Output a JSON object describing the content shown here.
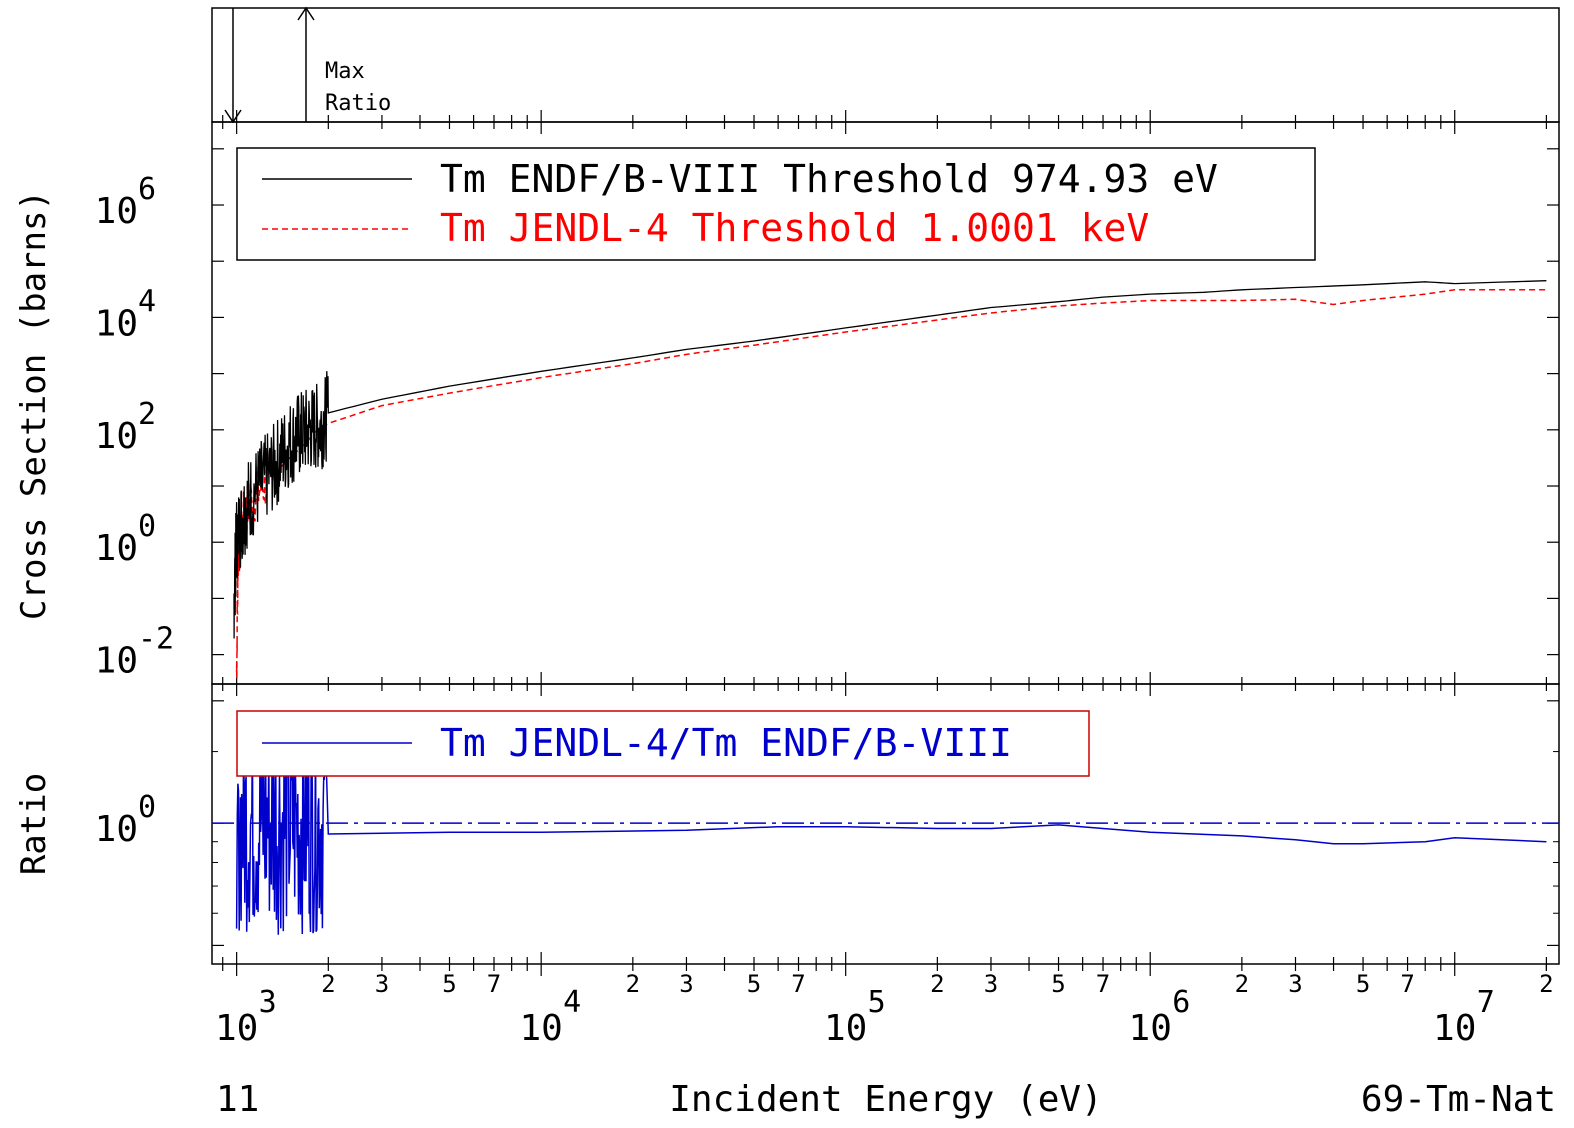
{
  "chart_data": [
    {
      "panel": "max-ratio",
      "labels": [
        "Max",
        "Ratio"
      ]
    },
    {
      "panel": "cross-section",
      "type": "line",
      "ylabel": "Cross Section (barns)",
      "xscale": "log",
      "yscale": "log",
      "xlim": [
        830,
        22000000
      ],
      "ylim": [
        0.003,
        30000000
      ],
      "ytick_exponents": [
        "6",
        "4",
        "2",
        "0",
        "-2"
      ],
      "legend": "top-left",
      "series": [
        {
          "name": "Tm ENDF/B-VIII Threshold 974.93 eV",
          "color": "#000000",
          "style": "solid",
          "points": [
            [
              980,
              0.1
            ],
            [
              1000,
              1.2
            ],
            [
              1050,
              3
            ],
            [
              1100,
              6
            ],
            [
              1200,
              11
            ],
            [
              1300,
              18
            ],
            [
              1400,
              35
            ],
            [
              1500,
              60
            ],
            [
              1600,
              80
            ],
            [
              1700,
              95
            ],
            [
              1800,
              110
            ],
            [
              1900,
              120
            ],
            [
              2000,
              200
            ],
            [
              3000,
              350
            ],
            [
              5000,
              600
            ],
            [
              10000,
              1100
            ],
            [
              20000,
              1900
            ],
            [
              30000,
              2700
            ],
            [
              50000,
              3800
            ],
            [
              100000,
              6500
            ],
            [
              200000,
              11000
            ],
            [
              300000,
              15000
            ],
            [
              500000,
              19000
            ],
            [
              700000,
              23000
            ],
            [
              1000000,
              26000
            ],
            [
              1500000,
              28000
            ],
            [
              2000000,
              31000
            ],
            [
              3000000,
              34000
            ],
            [
              5000000,
              38000
            ],
            [
              8000000,
              43000
            ],
            [
              10000000,
              40000
            ],
            [
              20000000,
              45000
            ]
          ],
          "noisy_region": [
            980,
            1950
          ]
        },
        {
          "name": "Tm JENDL-4 Threshold 1.0001 keV",
          "color": "#ff0000",
          "style": "dashed",
          "points": [
            [
              1000,
              0.005
            ],
            [
              1010,
              0.5
            ],
            [
              1050,
              2.5
            ],
            [
              1100,
              5
            ],
            [
              1200,
              9
            ],
            [
              1300,
              15
            ],
            [
              1500,
              32
            ],
            [
              1700,
              60
            ],
            [
              1800,
              90
            ],
            [
              1900,
              110
            ],
            [
              2000,
              130
            ],
            [
              3000,
              270
            ],
            [
              5000,
              450
            ],
            [
              10000,
              850
            ],
            [
              20000,
              1500
            ],
            [
              30000,
              2200
            ],
            [
              50000,
              3200
            ],
            [
              100000,
              5500
            ],
            [
              200000,
              9000
            ],
            [
              300000,
              12000
            ],
            [
              500000,
              16000
            ],
            [
              700000,
              18000
            ],
            [
              1000000,
              20000
            ],
            [
              2000000,
              20000
            ],
            [
              3000000,
              21000
            ],
            [
              4000000,
              17000
            ],
            [
              5000000,
              20000
            ],
            [
              8000000,
              26000
            ],
            [
              10000000,
              31000
            ],
            [
              20000000,
              31000
            ]
          ],
          "noisy_region": [
            1000,
            1300
          ]
        }
      ]
    },
    {
      "panel": "ratio",
      "type": "line",
      "ylabel": "Ratio",
      "xscale": "log",
      "yscale": "log",
      "xlim": [
        830,
        22000000
      ],
      "ylim": [
        0.45,
        2.2
      ],
      "ytick_exponents": [
        "0"
      ],
      "legend": "top-left",
      "reference_line": 1.0,
      "series": [
        {
          "name": "Tm JENDL-4/Tm ENDF/B-VIII",
          "color": "#0000cc",
          "style": "solid",
          "points": [
            [
              2000,
              0.94
            ],
            [
              5000,
              0.95
            ],
            [
              10000,
              0.95
            ],
            [
              30000,
              0.96
            ],
            [
              60000,
              0.98
            ],
            [
              100000,
              0.98
            ],
            [
              200000,
              0.97
            ],
            [
              300000,
              0.97
            ],
            [
              500000,
              0.99
            ],
            [
              700000,
              0.97
            ],
            [
              1000000,
              0.95
            ],
            [
              2000000,
              0.93
            ],
            [
              3000000,
              0.91
            ],
            [
              4000000,
              0.89
            ],
            [
              5000000,
              0.89
            ],
            [
              8000000,
              0.9
            ],
            [
              10000000,
              0.92
            ],
            [
              20000000,
              0.9
            ]
          ],
          "noisy_region": [
            1000,
            1950
          ]
        }
      ]
    }
  ],
  "x_axis": {
    "label": "Incident Energy (eV)",
    "decade_exponents": [
      "3",
      "4",
      "5",
      "6",
      "7"
    ],
    "minor_labels": [
      "2",
      "3",
      "5",
      "7"
    ],
    "last_label": "2"
  },
  "footer": {
    "left": "11",
    "right": "69-Tm-Nat"
  },
  "colors": {
    "frame": "#000000",
    "endf": "#000000",
    "jendl": "#ff0000",
    "ratio": "#0000cc",
    "ratio_legend_border": "#cc0000"
  }
}
